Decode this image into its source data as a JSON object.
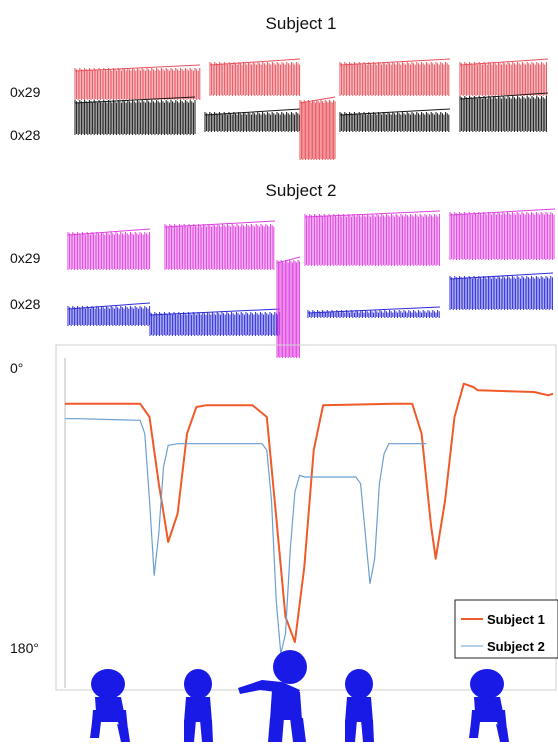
{
  "raster_panels": [
    {
      "title": "Subject 1",
      "ytick_labels": [
        "0x29",
        "0x28"
      ],
      "colors": {
        "upper": "#e8505a",
        "lower": "#151515",
        "dip": "#e8505a"
      }
    },
    {
      "title": "Subject 2",
      "ytick_labels": [
        "0x29",
        "0x28"
      ],
      "colors": {
        "upper": "#e040e0",
        "lower": "#2a2ad8",
        "dip": "#e040e0"
      }
    }
  ],
  "chart_data": {
    "type": "line",
    "ytick_labels": [
      "0°",
      "180°"
    ],
    "ylim": [
      0,
      180
    ],
    "y_inverted": true,
    "grid": false,
    "legend": {
      "placement": "bottom-right"
    },
    "series": [
      {
        "name": "Subject 1",
        "color": "#f05a28",
        "points": [
          [
            0,
            22
          ],
          [
            16,
            22
          ],
          [
            18,
            30
          ],
          [
            20,
            70
          ],
          [
            22,
            105
          ],
          [
            24,
            88
          ],
          [
            26,
            40
          ],
          [
            28,
            24
          ],
          [
            30,
            23
          ],
          [
            40,
            23
          ],
          [
            43,
            30
          ],
          [
            45,
            90
          ],
          [
            47,
            150
          ],
          [
            49,
            165
          ],
          [
            51,
            120
          ],
          [
            53,
            50
          ],
          [
            55,
            23
          ],
          [
            70,
            22
          ],
          [
            74,
            22
          ],
          [
            76,
            40
          ],
          [
            78,
            95
          ],
          [
            79,
            115
          ],
          [
            81,
            80
          ],
          [
            83,
            30
          ],
          [
            85,
            10
          ],
          [
            87,
            12
          ],
          [
            88,
            14
          ],
          [
            100,
            15
          ],
          [
            103,
            17
          ],
          [
            104,
            16
          ]
        ]
      },
      {
        "name": "Subject 2",
        "color": "#6a9fd0",
        "points": [
          [
            0,
            31
          ],
          [
            2,
            31
          ],
          [
            3,
            31
          ],
          [
            16,
            32
          ],
          [
            17,
            40
          ],
          [
            18,
            80
          ],
          [
            19,
            125
          ],
          [
            20,
            100
          ],
          [
            21,
            60
          ],
          [
            22,
            47
          ],
          [
            24,
            46
          ],
          [
            42,
            46
          ],
          [
            43,
            50
          ],
          [
            44,
            80
          ],
          [
            45,
            140
          ],
          [
            46,
            172
          ],
          [
            47,
            160
          ],
          [
            48,
            110
          ],
          [
            49,
            75
          ],
          [
            50,
            65
          ],
          [
            51,
            66
          ],
          [
            62,
            66
          ],
          [
            63,
            70
          ],
          [
            64,
            100
          ],
          [
            65,
            130
          ],
          [
            66,
            115
          ],
          [
            67,
            70
          ],
          [
            68,
            52
          ],
          [
            69,
            46
          ],
          [
            76,
            46
          ],
          [
            77,
            46
          ]
        ]
      }
    ]
  },
  "figures": [
    {
      "icon": "squatting-figure-icon"
    },
    {
      "icon": "standing-figure-icon"
    },
    {
      "icon": "bending-figure-icon"
    },
    {
      "icon": "standing-figure-icon"
    },
    {
      "icon": "squatting-figure-icon"
    }
  ]
}
